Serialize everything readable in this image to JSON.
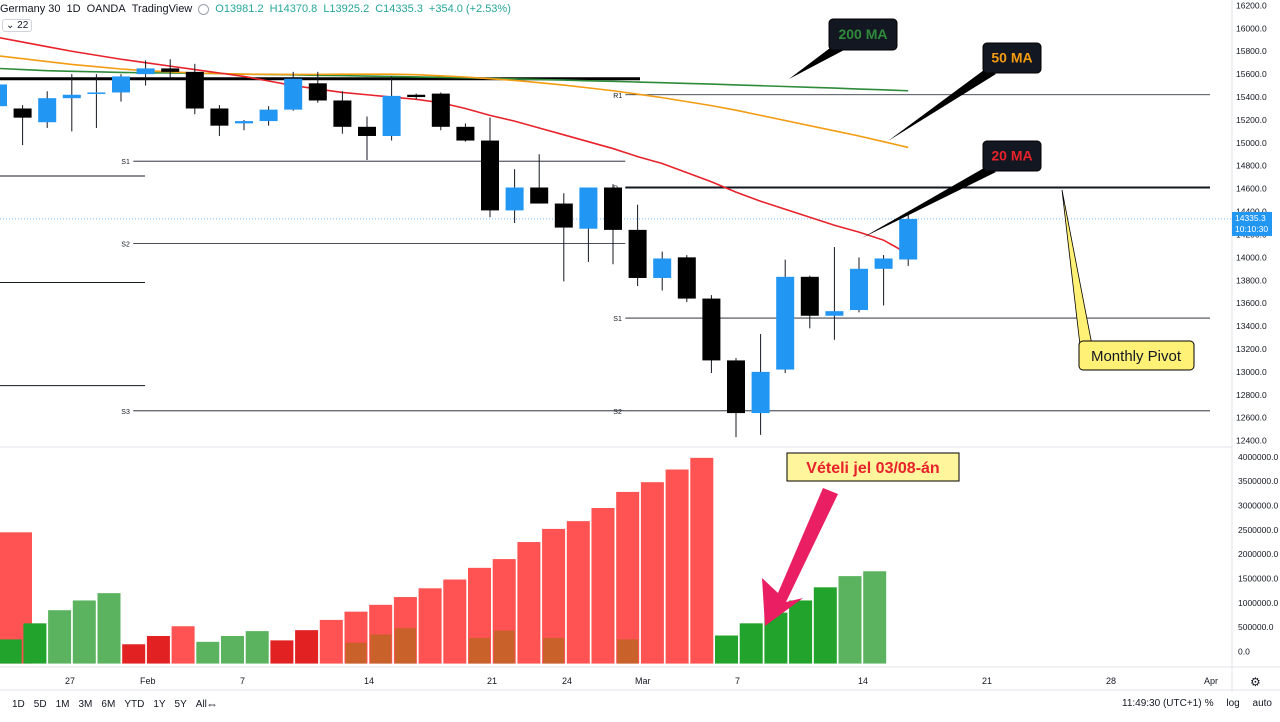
{
  "header": {
    "symbol": "Germany 30",
    "interval": "1D",
    "broker": "OANDA",
    "platform": "TradingView",
    "open": "O13981.2",
    "high": "H14370.8",
    "low": "L13925.2",
    "close": "C14335.3",
    "change": "+354.0 (+2.53%)",
    "volume_length": "22"
  },
  "colors": {
    "up_candle": "#2196f3",
    "down_candle": "#000000",
    "ma20": "#e8222b",
    "ma50": "#f39c12",
    "ma200": "#2e8b3a",
    "vol_up": "#22a32b",
    "vol_down": "#ff5252",
    "vol_up_light": "#5bb35f",
    "vol_down_dark": "#e22222",
    "vol_brown": "#c8612a",
    "pivot_box_fill": "#fff176"
  },
  "annotations": {
    "ma200_label": "200 MA",
    "ma50_label": "50 MA",
    "ma20_label": "20 MA",
    "pivot_label": "Monthly Pivot",
    "signal_label": "Vételi jel 03/08-án"
  },
  "pivot_labels": {
    "left_s1": "S1",
    "left_s2": "S2",
    "left_s3": "S3",
    "right_r1": "R1",
    "right_p": "P",
    "right_s1": "S1",
    "right_s2": "S2"
  },
  "chart_data": [
    {
      "type": "candlestick",
      "title": "Germany 30 · 1D · OANDA",
      "price_axis_ticks": [
        16200,
        16000,
        15800,
        15600,
        15400,
        15200,
        15000,
        14800,
        14600,
        14400,
        14200,
        14000,
        13800,
        13600,
        13400,
        13200,
        13000,
        12800,
        12600,
        12400
      ],
      "price_axis_range": [
        12370,
        16230
      ],
      "last_price_label": "14335.3",
      "countdown_label": "10:10:30",
      "time_axis_ticks": [
        "27",
        "Feb",
        "7",
        "14",
        "21",
        "24",
        "Mar",
        "7",
        "14",
        "21",
        "28",
        "Apr"
      ],
      "candles": [
        {
          "o": 15320,
          "h": 15650,
          "l": 15150,
          "c": 15510
        },
        {
          "o": 15300,
          "h": 15330,
          "l": 14980,
          "c": 15220
        },
        {
          "o": 15180,
          "h": 15450,
          "l": 15130,
          "c": 15390
        },
        {
          "o": 15390,
          "h": 15600,
          "l": 15100,
          "c": 15420
        },
        {
          "o": 15430,
          "h": 15600,
          "l": 15130,
          "c": 15440
        },
        {
          "o": 15440,
          "h": 15600,
          "l": 15360,
          "c": 15580
        },
        {
          "o": 15600,
          "h": 15720,
          "l": 15500,
          "c": 15650
        },
        {
          "o": 15650,
          "h": 15730,
          "l": 15570,
          "c": 15620
        },
        {
          "o": 15620,
          "h": 15690,
          "l": 15250,
          "c": 15300
        },
        {
          "o": 15300,
          "h": 15330,
          "l": 15060,
          "c": 15150
        },
        {
          "o": 15170,
          "h": 15200,
          "l": 15110,
          "c": 15190
        },
        {
          "o": 15190,
          "h": 15320,
          "l": 15150,
          "c": 15290
        },
        {
          "o": 15290,
          "h": 15620,
          "l": 15280,
          "c": 15560
        },
        {
          "o": 15520,
          "h": 15620,
          "l": 15350,
          "c": 15370
        },
        {
          "o": 15370,
          "h": 15450,
          "l": 15080,
          "c": 15140
        },
        {
          "o": 15140,
          "h": 15230,
          "l": 14850,
          "c": 15060
        },
        {
          "o": 15060,
          "h": 15580,
          "l": 15020,
          "c": 15410
        },
        {
          "o": 15420,
          "h": 15430,
          "l": 15380,
          "c": 15400
        },
        {
          "o": 15430,
          "h": 15440,
          "l": 15110,
          "c": 15140
        },
        {
          "o": 15140,
          "h": 15170,
          "l": 15010,
          "c": 15020
        },
        {
          "o": 15020,
          "h": 15220,
          "l": 14350,
          "c": 14410
        },
        {
          "o": 14410,
          "h": 14770,
          "l": 14300,
          "c": 14610
        },
        {
          "o": 14610,
          "h": 14900,
          "l": 14490,
          "c": 14470
        },
        {
          "o": 14470,
          "h": 14560,
          "l": 13790,
          "c": 14260
        },
        {
          "o": 14250,
          "h": 14610,
          "l": 13960,
          "c": 14610
        },
        {
          "o": 14610,
          "h": 14640,
          "l": 13940,
          "c": 14240
        },
        {
          "o": 14240,
          "h": 14460,
          "l": 13750,
          "c": 13820
        },
        {
          "o": 13820,
          "h": 14050,
          "l": 13710,
          "c": 13990
        },
        {
          "o": 14000,
          "h": 14020,
          "l": 13610,
          "c": 13640
        },
        {
          "o": 13640,
          "h": 13670,
          "l": 12990,
          "c": 13100
        },
        {
          "o": 13100,
          "h": 13120,
          "l": 12430,
          "c": 12640
        },
        {
          "o": 12640,
          "h": 13330,
          "l": 12450,
          "c": 13000
        },
        {
          "o": 13020,
          "h": 13980,
          "l": 12990,
          "c": 13830
        },
        {
          "o": 13830,
          "h": 13840,
          "l": 13380,
          "c": 13490
        },
        {
          "o": 13490,
          "h": 14090,
          "l": 13280,
          "c": 13530
        },
        {
          "o": 13540,
          "h": 14000,
          "l": 13520,
          "c": 13900
        },
        {
          "o": 13900,
          "h": 14020,
          "l": 13580,
          "c": 13990
        },
        {
          "o": 13981.2,
          "h": 14370.8,
          "l": 13925.2,
          "c": 14335.3
        }
      ],
      "moving_averages": [
        {
          "name": "200 MA",
          "values": [
            15650,
            15640,
            15630,
            15625,
            15620,
            15615,
            15612,
            15610,
            15608,
            15605,
            15600,
            15597,
            15594,
            15590,
            15587,
            15583,
            15580,
            15576,
            15572,
            15568,
            15563,
            15558,
            15553,
            15548,
            15542,
            15537,
            15531,
            15525,
            15519,
            15513,
            15506,
            15499,
            15492,
            15485,
            15478,
            15470,
            15463,
            15455
          ]
        },
        {
          "name": "50 MA",
          "values": [
            15760,
            15735,
            15710,
            15685,
            15665,
            15645,
            15630,
            15620,
            15610,
            15605,
            15600,
            15598,
            15597,
            15598,
            15600,
            15600,
            15600,
            15595,
            15585,
            15575,
            15560,
            15545,
            15525,
            15505,
            15480,
            15455,
            15425,
            15395,
            15360,
            15325,
            15285,
            15240,
            15195,
            15150,
            15105,
            15060,
            15010,
            14960
          ]
        },
        {
          "name": "20 MA",
          "values": [
            15920,
            15880,
            15840,
            15800,
            15765,
            15730,
            15700,
            15670,
            15640,
            15610,
            15580,
            15540,
            15500,
            15470,
            15440,
            15420,
            15400,
            15380,
            15350,
            15300,
            15240,
            15190,
            15130,
            15070,
            15010,
            14950,
            14880,
            14820,
            14740,
            14660,
            14570,
            14490,
            14420,
            14350,
            14280,
            14220,
            14150,
            14030
          ]
        }
      ],
      "pivot_lines": [
        {
          "label": "S1",
          "value": 14840,
          "x_from_index": 5.5,
          "x_to_index": 25.5
        },
        {
          "label": "S2",
          "value": 14120,
          "x_from_index": 5.5,
          "x_to_index": 25.5
        },
        {
          "label": "S3",
          "value": 12660,
          "x_from_index": 5.5,
          "x_to_index": 25.5
        },
        {
          "label": "R1",
          "value": 15420,
          "x_from_index": 25.5,
          "x_to_index": 48
        },
        {
          "label": "P",
          "value": 14610,
          "x_from_index": 25.5,
          "x_to_index": 48
        },
        {
          "label": "S1",
          "value": 13470,
          "x_from_index": 25.5,
          "x_to_index": 48
        },
        {
          "label": "S2",
          "value": 12660,
          "x_from_index": 25.5,
          "x_to_index": 48
        }
      ],
      "left_partial_levels": [
        14710,
        13780,
        12880
      ],
      "resistance_line": {
        "value": 15560,
        "x_from_index": 0,
        "x_to_index": 25.5
      }
    },
    {
      "type": "bar",
      "title": "Volume",
      "axis_ticks": [
        "4000000.0",
        "3500000.0",
        "3000000.0",
        "2500000.0",
        "2000000.0",
        "1500000.0",
        "1000000.0",
        "500000.0",
        "0.0"
      ],
      "ylim": [
        -50000,
        4100000
      ],
      "bars": [
        {
          "v": 2450000,
          "dir": "down"
        },
        {
          "v": 250000,
          "dir": "up"
        },
        {
          "v": 580000,
          "dir": "up"
        },
        {
          "v": 850000,
          "dir": "up_light"
        },
        {
          "v": 1050000,
          "dir": "up_light"
        },
        {
          "v": 1200000,
          "dir": "up_light"
        },
        {
          "v": 150000,
          "dir": "down_dark"
        },
        {
          "v": 320000,
          "dir": "down_dark"
        },
        {
          "v": 520000,
          "dir": "down"
        },
        {
          "v": 200000,
          "dir": "up_light"
        },
        {
          "v": 320000,
          "dir": "up_light"
        },
        {
          "v": 420000,
          "dir": "up_light"
        },
        {
          "v": 230000,
          "dir": "down_dark"
        },
        {
          "v": 440000,
          "dir": "down_dark"
        },
        {
          "v": 650000,
          "dir": "down",
          "inner": 0
        },
        {
          "v": 820000,
          "dir": "down",
          "inner": 180000
        },
        {
          "v": 960000,
          "dir": "down",
          "inner": 350000
        },
        {
          "v": 1120000,
          "dir": "down",
          "inner": 480000
        },
        {
          "v": 1300000,
          "dir": "down"
        },
        {
          "v": 1480000,
          "dir": "down"
        },
        {
          "v": 1720000,
          "dir": "down",
          "inner": 280000
        },
        {
          "v": 1900000,
          "dir": "down",
          "inner": 430000
        },
        {
          "v": 2250000,
          "dir": "down"
        },
        {
          "v": 2520000,
          "dir": "down",
          "inner": 280000
        },
        {
          "v": 2680000,
          "dir": "down"
        },
        {
          "v": 2950000,
          "dir": "down"
        },
        {
          "v": 3280000,
          "dir": "down",
          "inner": 250000
        },
        {
          "v": 3480000,
          "dir": "down"
        },
        {
          "v": 3740000,
          "dir": "down"
        },
        {
          "v": 3980000,
          "dir": "down"
        },
        {
          "v": 330000,
          "dir": "up"
        },
        {
          "v": 580000,
          "dir": "up"
        },
        {
          "v": 800000,
          "dir": "up"
        },
        {
          "v": 1050000,
          "dir": "up"
        },
        {
          "v": 1320000,
          "dir": "up"
        },
        {
          "v": 1550000,
          "dir": "up_light"
        },
        {
          "v": 1650000,
          "dir": "up_light"
        }
      ]
    }
  ],
  "bottom_bar": {
    "timeframes": [
      "1D",
      "5D",
      "1M",
      "3M",
      "6M",
      "YTD",
      "1Y",
      "5Y",
      "All"
    ],
    "time": "11:49:30 (UTC+1)",
    "percent": "%",
    "log": "log",
    "auto": "auto"
  }
}
